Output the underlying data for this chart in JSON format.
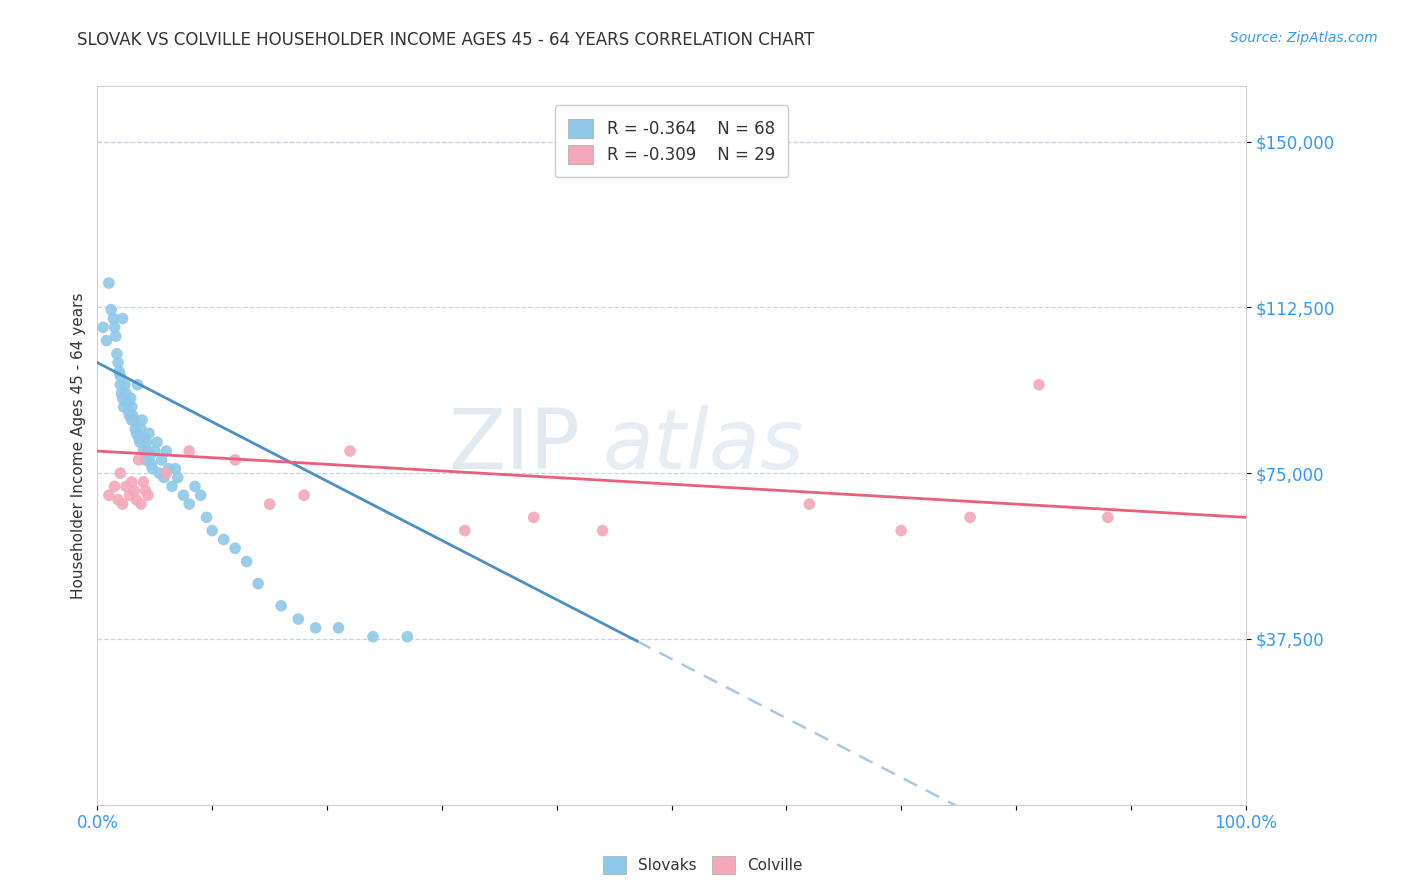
{
  "title": "SLOVAK VS COLVILLE HOUSEHOLDER INCOME AGES 45 - 64 YEARS CORRELATION CHART",
  "source_text": "Source: ZipAtlas.com",
  "ylabel": "Householder Income Ages 45 - 64 years",
  "xmin": 0.0,
  "xmax": 1.0,
  "ymin": 0,
  "ymax": 162500,
  "yticks": [
    37500,
    75000,
    112500,
    150000
  ],
  "ytick_labels": [
    "$37,500",
    "$75,000",
    "$112,500",
    "$150,000"
  ],
  "legend_slovak_r": "R = -0.364",
  "legend_slovak_n": "N = 68",
  "legend_colville_r": "R = -0.309",
  "legend_colville_n": "N = 29",
  "slovak_color": "#8ec8e8",
  "colville_color": "#f4a8b8",
  "slovak_line_color": "#4a90c4",
  "colville_line_color": "#e8607a",
  "dashed_line_color": "#a8c8e8",
  "watermark_zip": "ZIP",
  "watermark_atlas": "atlas",
  "background_color": "#ffffff",
  "grid_color": "#c8d4e8",
  "slovak_x": [
    0.005,
    0.008,
    0.01,
    0.012,
    0.014,
    0.015,
    0.016,
    0.017,
    0.018,
    0.019,
    0.02,
    0.02,
    0.021,
    0.022,
    0.022,
    0.023,
    0.024,
    0.025,
    0.026,
    0.027,
    0.028,
    0.029,
    0.03,
    0.03,
    0.031,
    0.032,
    0.033,
    0.034,
    0.035,
    0.036,
    0.037,
    0.038,
    0.039,
    0.04,
    0.041,
    0.042,
    0.043,
    0.044,
    0.045,
    0.046,
    0.047,
    0.048,
    0.05,
    0.052,
    0.054,
    0.056,
    0.058,
    0.06,
    0.062,
    0.065,
    0.068,
    0.07,
    0.075,
    0.08,
    0.085,
    0.09,
    0.095,
    0.1,
    0.11,
    0.12,
    0.13,
    0.14,
    0.16,
    0.175,
    0.19,
    0.21,
    0.24,
    0.27
  ],
  "slovak_y": [
    108000,
    105000,
    118000,
    112000,
    110000,
    108000,
    106000,
    102000,
    100000,
    98000,
    97000,
    95000,
    93000,
    92000,
    110000,
    90000,
    95000,
    93000,
    91000,
    89000,
    88000,
    92000,
    87000,
    90000,
    88000,
    87000,
    85000,
    84000,
    95000,
    83000,
    82000,
    85000,
    87000,
    80000,
    83000,
    78000,
    82000,
    80000,
    84000,
    79000,
    77000,
    76000,
    80000,
    82000,
    75000,
    78000,
    74000,
    80000,
    76000,
    72000,
    76000,
    74000,
    70000,
    68000,
    72000,
    70000,
    65000,
    62000,
    60000,
    58000,
    55000,
    50000,
    45000,
    42000,
    40000,
    40000,
    38000,
    38000
  ],
  "colville_x": [
    0.01,
    0.015,
    0.018,
    0.02,
    0.022,
    0.025,
    0.028,
    0.03,
    0.032,
    0.034,
    0.036,
    0.038,
    0.04,
    0.042,
    0.044,
    0.06,
    0.08,
    0.12,
    0.15,
    0.18,
    0.22,
    0.32,
    0.38,
    0.44,
    0.62,
    0.7,
    0.76,
    0.82,
    0.88
  ],
  "colville_y": [
    70000,
    72000,
    69000,
    75000,
    68000,
    72000,
    70000,
    73000,
    71000,
    69000,
    78000,
    68000,
    73000,
    71000,
    70000,
    75000,
    80000,
    78000,
    68000,
    70000,
    80000,
    62000,
    65000,
    62000,
    68000,
    62000,
    65000,
    95000,
    65000
  ]
}
